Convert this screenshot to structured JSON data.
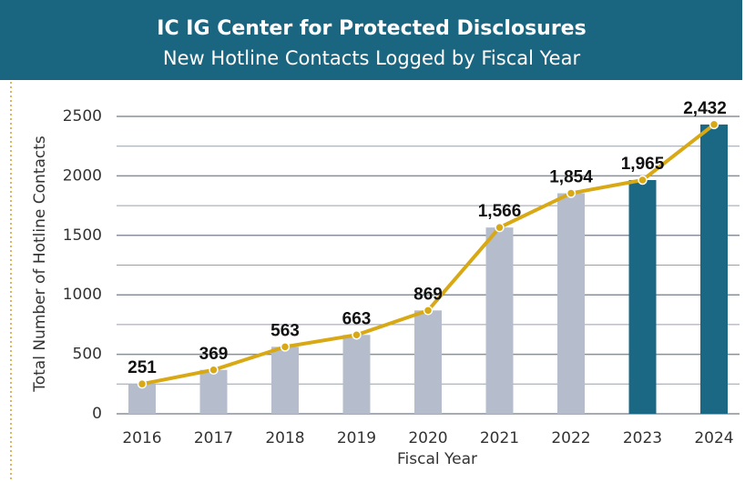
{
  "chart_data": {
    "type": "bar",
    "title": "IC IG Center for Protected Disclosures",
    "subtitle": "New Hotline Contacts Logged by Fiscal Year",
    "x_label": "Fiscal Year",
    "y_label": "Total Number of Hotline Contacts",
    "categories": [
      "2016",
      "2017",
      "2018",
      "2019",
      "2020",
      "2021",
      "2022",
      "2023",
      "2024"
    ],
    "values": [
      251,
      369,
      563,
      663,
      869,
      1566,
      1854,
      1965,
      2432
    ],
    "value_labels": [
      "251",
      "369",
      "563",
      "663",
      "869",
      "1,566",
      "1,854",
      "1,965",
      "2,432"
    ],
    "colors": [
      "#b5bccb",
      "#b5bccb",
      "#b5bccb",
      "#b5bccb",
      "#b5bccb",
      "#b5bccb",
      "#b5bccb",
      "#1a6884",
      "#1a6884"
    ],
    "line_color": "#d8a815",
    "ylim": [
      0,
      2500
    ],
    "yticks": [
      0,
      500,
      1000,
      1500,
      2000,
      2500
    ],
    "minor_yticks": [
      250,
      750,
      1250,
      1750,
      2250
    ],
    "grid": true
  }
}
